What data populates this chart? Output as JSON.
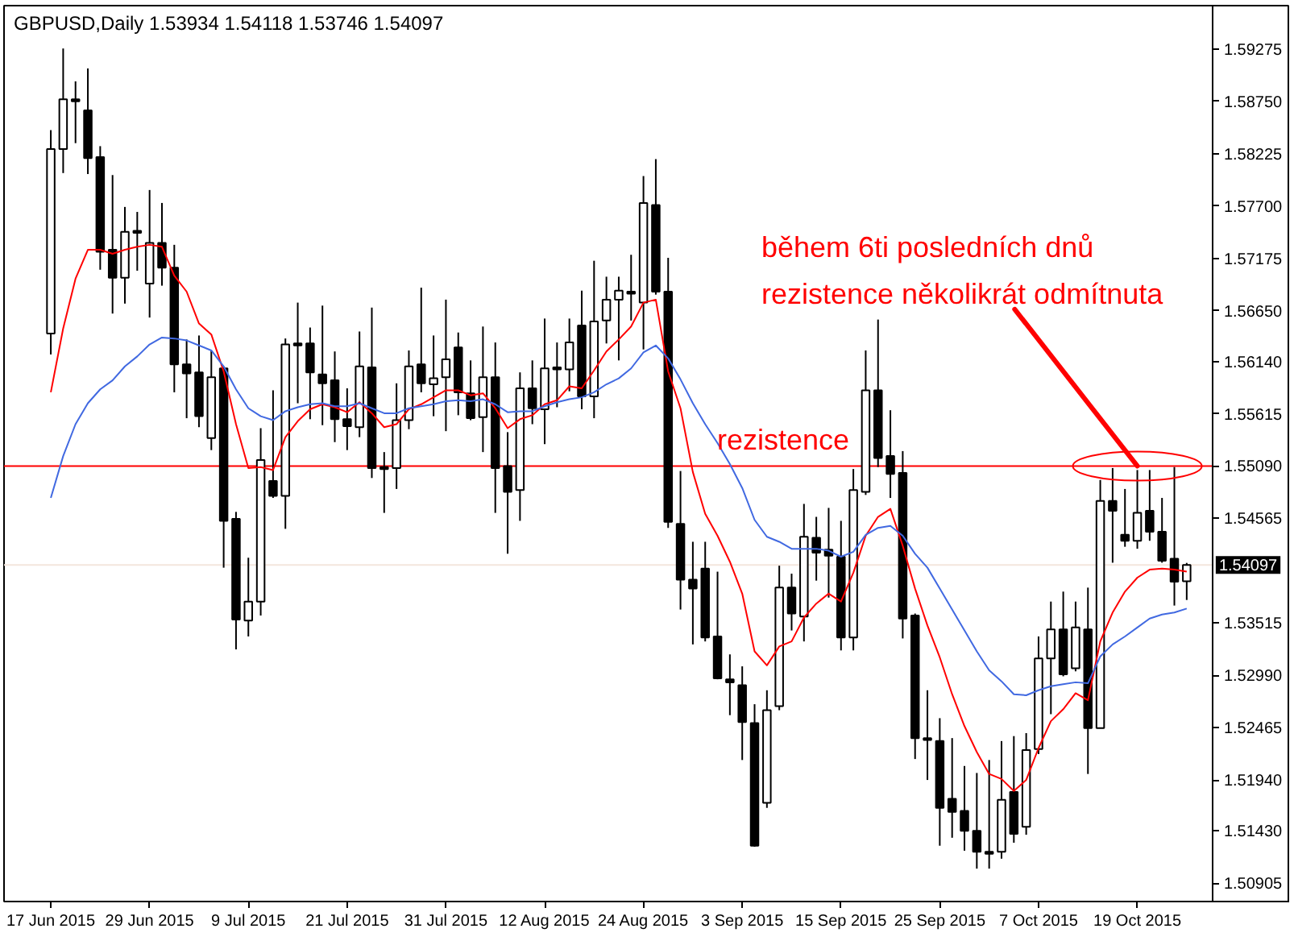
{
  "chart_data": {
    "type": "candlestick",
    "title": "GBPUSD,Daily  1.53934 1.54118 1.53746 1.54097",
    "categories": [
      "17 Jun 2015",
      null,
      null,
      null,
      null,
      null,
      null,
      null,
      "29 Jun 2015",
      null,
      null,
      null,
      null,
      null,
      null,
      null,
      "9 Jul 2015",
      null,
      null,
      null,
      null,
      null,
      null,
      null,
      "21 Jul 2015",
      null,
      null,
      null,
      null,
      null,
      null,
      null,
      "31 Jul 2015",
      null,
      null,
      null,
      null,
      null,
      null,
      null,
      "12 Aug 2015",
      null,
      null,
      null,
      null,
      null,
      null,
      null,
      "24 Aug 2015",
      null,
      null,
      null,
      null,
      null,
      null,
      null,
      "3 Sep 2015",
      null,
      null,
      null,
      null,
      null,
      null,
      null,
      "15 Sep 2015",
      null,
      null,
      null,
      null,
      null,
      null,
      null,
      "25 Sep 2015",
      null,
      null,
      null,
      null,
      null,
      null,
      null,
      "7 Oct 2015",
      null,
      null,
      null,
      null,
      null,
      null,
      null,
      "19 Oct 2015",
      null,
      null,
      null,
      null
    ],
    "ohlc": [
      [
        1.5642,
        1.5846,
        1.5621,
        1.5827
      ],
      [
        1.5827,
        1.5928,
        1.5803,
        1.5877
      ],
      [
        1.5877,
        1.5895,
        1.5833,
        1.5875
      ],
      [
        1.5866,
        1.5908,
        1.5802,
        1.5818
      ],
      [
        1.5819,
        1.583,
        1.5706,
        1.5724
      ],
      [
        1.5726,
        1.5801,
        1.5662,
        1.5698
      ],
      [
        1.5698,
        1.5769,
        1.5672,
        1.5744
      ],
      [
        1.5745,
        1.5764,
        1.5705,
        1.5743
      ],
      [
        1.5692,
        1.5786,
        1.5658,
        1.5733
      ],
      [
        1.5733,
        1.5773,
        1.569,
        1.5708
      ],
      [
        1.5708,
        1.5731,
        1.5583,
        1.5611
      ],
      [
        1.5611,
        1.5636,
        1.5557,
        1.5602
      ],
      [
        1.5603,
        1.564,
        1.5548,
        1.5559
      ],
      [
        1.5537,
        1.5625,
        1.5525,
        1.5598
      ],
      [
        1.5607,
        1.5609,
        1.5407,
        1.5454
      ],
      [
        1.5456,
        1.5463,
        1.5325,
        1.5355
      ],
      [
        1.5354,
        1.5417,
        1.5338,
        1.5373
      ],
      [
        1.5373,
        1.5547,
        1.5359,
        1.5515
      ],
      [
        1.5494,
        1.5585,
        1.5477,
        1.5479
      ],
      [
        1.5479,
        1.5637,
        1.5446,
        1.5631
      ],
      [
        1.5632,
        1.5673,
        1.5572,
        1.563
      ],
      [
        1.5632,
        1.5648,
        1.5556,
        1.5603
      ],
      [
        1.5601,
        1.567,
        1.555,
        1.5592
      ],
      [
        1.5595,
        1.5624,
        1.5533,
        1.5556
      ],
      [
        1.5556,
        1.5587,
        1.5525,
        1.5549
      ],
      [
        1.5548,
        1.5644,
        1.5538,
        1.5609
      ],
      [
        1.5608,
        1.5668,
        1.5497,
        1.5507
      ],
      [
        1.5508,
        1.5523,
        1.5462,
        1.5506
      ],
      [
        1.5507,
        1.5592,
        1.5486,
        1.5555
      ],
      [
        1.5555,
        1.5625,
        1.5546,
        1.5609
      ],
      [
        1.5611,
        1.5688,
        1.5583,
        1.5592
      ],
      [
        1.5591,
        1.564,
        1.5559,
        1.5597
      ],
      [
        1.5598,
        1.5676,
        1.5544,
        1.5616
      ],
      [
        1.5628,
        1.5643,
        1.556,
        1.5583
      ],
      [
        1.5582,
        1.5615,
        1.5555,
        1.5557
      ],
      [
        1.5558,
        1.5649,
        1.5523,
        1.5598
      ],
      [
        1.5598,
        1.5633,
        1.5462,
        1.5507
      ],
      [
        1.5509,
        1.5543,
        1.5421,
        1.5483
      ],
      [
        1.5485,
        1.5603,
        1.5454,
        1.5587
      ],
      [
        1.5587,
        1.5615,
        1.5551,
        1.5567
      ],
      [
        1.5566,
        1.5657,
        1.5531,
        1.5607
      ],
      [
        1.5608,
        1.5633,
        1.5568,
        1.5606
      ],
      [
        1.5606,
        1.5657,
        1.5584,
        1.5633
      ],
      [
        1.565,
        1.5685,
        1.5566,
        1.5579
      ],
      [
        1.5579,
        1.5715,
        1.5557,
        1.5654
      ],
      [
        1.5655,
        1.5699,
        1.5632,
        1.5676
      ],
      [
        1.5676,
        1.5699,
        1.5615,
        1.5685
      ],
      [
        1.5684,
        1.5721,
        1.5655,
        1.5682
      ],
      [
        1.5673,
        1.58,
        1.5626,
        1.5773
      ],
      [
        1.5771,
        1.5817,
        1.5681,
        1.5684
      ],
      [
        1.5684,
        1.5718,
        1.5447,
        1.5453
      ],
      [
        1.5451,
        1.5504,
        1.5365,
        1.5395
      ],
      [
        1.5395,
        1.5433,
        1.533,
        1.5386
      ],
      [
        1.5406,
        1.5433,
        1.5333,
        1.5337
      ],
      [
        1.5338,
        1.5403,
        1.5295,
        1.5296
      ],
      [
        1.5295,
        1.532,
        1.5259,
        1.5292
      ],
      [
        1.5289,
        1.5308,
        1.5214,
        1.5252
      ],
      [
        1.5251,
        1.527,
        1.5127,
        1.5128
      ],
      [
        1.5171,
        1.5284,
        1.5166,
        1.5264
      ],
      [
        1.5268,
        1.5409,
        1.5264,
        1.5387
      ],
      [
        1.5387,
        1.5401,
        1.5344,
        1.5361
      ],
      [
        1.5358,
        1.5471,
        1.5333,
        1.5438
      ],
      [
        1.5437,
        1.5458,
        1.5394,
        1.5422
      ],
      [
        1.5425,
        1.5467,
        1.5377,
        1.5419
      ],
      [
        1.5418,
        1.5454,
        1.5324,
        1.5337
      ],
      [
        1.5337,
        1.5506,
        1.5324,
        1.5485
      ],
      [
        1.5483,
        1.5625,
        1.548,
        1.5585
      ],
      [
        1.5585,
        1.5656,
        1.5508,
        1.5517
      ],
      [
        1.5519,
        1.5565,
        1.5477,
        1.5501
      ],
      [
        1.5502,
        1.5524,
        1.5336,
        1.5356
      ],
      [
        1.5359,
        1.5361,
        1.5215,
        1.5236
      ],
      [
        1.5236,
        1.5284,
        1.5194,
        1.5234
      ],
      [
        1.5233,
        1.5256,
        1.5128,
        1.5166
      ],
      [
        1.5175,
        1.5236,
        1.5136,
        1.5162
      ],
      [
        1.5163,
        1.5208,
        1.5123,
        1.5143
      ],
      [
        1.5143,
        1.5201,
        1.5105,
        1.5122
      ],
      [
        1.5122,
        1.5214,
        1.5105,
        1.512
      ],
      [
        1.5122,
        1.5233,
        1.5115,
        1.5174
      ],
      [
        1.5182,
        1.5238,
        1.5131,
        1.514
      ],
      [
        1.5147,
        1.5241,
        1.5139,
        1.5224
      ],
      [
        1.5225,
        1.5338,
        1.522,
        1.5316
      ],
      [
        1.5316,
        1.5373,
        1.526,
        1.5345
      ],
      [
        1.5345,
        1.5383,
        1.5298,
        1.53
      ],
      [
        1.5306,
        1.5373,
        1.5303,
        1.5347
      ],
      [
        1.5345,
        1.5387,
        1.52,
        1.5246
      ],
      [
        1.5246,
        1.5495,
        1.5246,
        1.5474
      ],
      [
        1.5474,
        1.5507,
        1.5412,
        1.5464
      ],
      [
        1.544,
        1.5486,
        1.5428,
        1.5434
      ],
      [
        1.5434,
        1.5505,
        1.5426,
        1.5462
      ],
      [
        1.5464,
        1.5505,
        1.5434,
        1.5443
      ],
      [
        1.5443,
        1.5477,
        1.5412,
        1.5414
      ],
      [
        1.5416,
        1.5508,
        1.5369,
        1.5393
      ],
      [
        1.53934,
        1.54118,
        1.53746,
        1.54097
      ]
    ],
    "color": "#000000",
    "series": [
      {
        "type": "line",
        "color": "#ff0000",
        "values": [
          1.5583,
          1.5647,
          1.5697,
          1.5726,
          1.5726,
          1.5722,
          1.5726,
          1.5729,
          1.5731,
          1.5729,
          1.57,
          1.5684,
          1.5652,
          1.5641,
          1.5604,
          1.5551,
          1.5507,
          1.5508,
          1.5505,
          1.5538,
          1.5554,
          1.5566,
          1.5571,
          1.5568,
          1.5563,
          1.5573,
          1.5562,
          1.5548,
          1.5551,
          1.5566,
          1.5571,
          1.5578,
          1.5585,
          1.5585,
          1.558,
          1.5582,
          1.5567,
          1.5547,
          1.5556,
          1.556,
          1.5571,
          1.5575,
          1.5589,
          1.5587,
          1.5605,
          1.5624,
          1.5636,
          1.5649,
          1.5673,
          1.5676,
          1.5604,
          1.5567,
          1.5503,
          1.5461,
          1.5439,
          1.5413,
          1.5381,
          1.5323,
          1.5309,
          1.5328,
          1.5333,
          1.5357,
          1.5371,
          1.5381,
          1.5373,
          1.5402,
          1.5439,
          1.5458,
          1.5466,
          1.5429,
          1.5386,
          1.5349,
          1.5317,
          1.528,
          1.5248,
          1.5222,
          1.52,
          1.5195,
          1.5183,
          1.5194,
          1.5226,
          1.5253,
          1.5265,
          1.5281,
          1.5274,
          1.5333,
          1.5362,
          1.5383,
          1.5397,
          1.5405,
          1.5406,
          1.5405,
          1.5403
        ]
      },
      {
        "type": "line",
        "color": "#4169e1",
        "values": [
          1.5477,
          1.5519,
          1.5551,
          1.5572,
          1.5586,
          1.5595,
          1.5609,
          1.5619,
          1.5631,
          1.5638,
          1.5637,
          1.5635,
          1.563,
          1.5625,
          1.5609,
          1.5586,
          1.5567,
          1.5559,
          1.5555,
          1.5564,
          1.5568,
          1.5571,
          1.5572,
          1.5569,
          1.5569,
          1.5572,
          1.5567,
          1.5562,
          1.5562,
          1.5567,
          1.5569,
          1.5571,
          1.5574,
          1.5575,
          1.5574,
          1.5576,
          1.5571,
          1.5563,
          1.5564,
          1.5564,
          1.5569,
          1.5573,
          1.5576,
          1.5578,
          1.5583,
          1.5591,
          1.5597,
          1.5607,
          1.5623,
          1.563,
          1.5617,
          1.5596,
          1.5572,
          1.5551,
          1.5532,
          1.5511,
          1.5487,
          1.5455,
          1.5438,
          1.5433,
          1.5426,
          1.5426,
          1.5426,
          1.5424,
          1.5418,
          1.5423,
          1.544,
          1.5447,
          1.5449,
          1.5439,
          1.5421,
          1.5407,
          1.5386,
          1.5365,
          1.5344,
          1.5323,
          1.5304,
          1.5293,
          1.528,
          1.5279,
          1.5284,
          1.5288,
          1.529,
          1.5292,
          1.5291,
          1.5318,
          1.533,
          1.5338,
          1.5347,
          1.5356,
          1.536,
          1.5362,
          1.5366
        ]
      }
    ],
    "ylim": [
      1.5072,
      1.5971
    ],
    "yticks": [
      1.59275,
      {
        "value": 1.5875,
        "label": "1.58750"
      },
      1.58225,
      {
        "value": 1.577,
        "label": "1.57700"
      },
      1.57175,
      {
        "value": 1.5665,
        "label": "1.56650"
      },
      {
        "value": 1.5614,
        "label": "1.56140"
      },
      1.55615,
      {
        "value": 1.5509,
        "label": "1.55090"
      },
      1.54565,
      1.53515,
      {
        "value": 1.5299,
        "label": "1.52990"
      },
      1.52465,
      {
        "value": 1.5194,
        "label": "1.51940"
      },
      {
        "value": 1.5143,
        "label": "1.51430"
      },
      1.50905
    ],
    "grid": false,
    "ref_lines": [
      {
        "axis": "y",
        "value": 1.5509,
        "color": "#ff0000"
      },
      {
        "axis": "y",
        "value": 1.54097,
        "label": "1.54097",
        "color": "#f3e6dd"
      }
    ],
    "annotations": [
      {
        "text": "rezistence",
        "y": 1.5509
      },
      {
        "text": "během 6ti posledních dnů\nrezistence několikrát odmítnuta",
        "x": "19 Oct 2015",
        "y": 1.5509
      }
    ]
  }
}
